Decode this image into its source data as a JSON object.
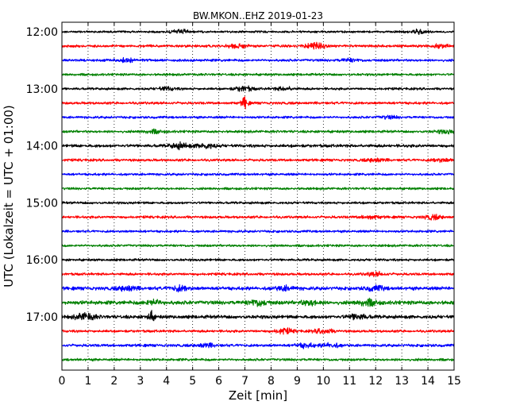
{
  "chart_data": {
    "type": "line",
    "title": "BW.MKON..EHZ 2019-01-23",
    "xlabel": "Zeit  [min]",
    "ylabel": "UTC (Lokalzeit = UTC + 01:00)",
    "xlim": [
      0,
      15
    ],
    "x_ticks": [
      "0",
      "1",
      "2",
      "3",
      "4",
      "5",
      "6",
      "7",
      "8",
      "9",
      "10",
      "11",
      "12",
      "13",
      "14",
      "15"
    ],
    "y_ticks": [
      "12:00",
      "13:00",
      "14:00",
      "15:00",
      "16:00",
      "17:00"
    ],
    "grid": "vertical dotted",
    "trace_colors": [
      "#000000",
      "#ff0000",
      "#0000ff",
      "#008000"
    ],
    "traces": [
      {
        "start": "12:00",
        "color": "#000000",
        "amplitude": 0.25,
        "events": [
          {
            "t": 4.5,
            "a": 0.45
          },
          {
            "t": 13.6,
            "a": 0.4
          }
        ]
      },
      {
        "start": "12:15",
        "color": "#ff0000",
        "amplitude": 0.3,
        "events": [
          {
            "t": 6.7,
            "a": 0.45
          },
          {
            "t": 9.7,
            "a": 0.7
          },
          {
            "t": 14.5,
            "a": 0.35
          }
        ]
      },
      {
        "start": "12:30",
        "color": "#0000ff",
        "amplitude": 0.3,
        "events": [
          {
            "t": 2.5,
            "a": 0.4
          },
          {
            "t": 11.0,
            "a": 0.3
          }
        ]
      },
      {
        "start": "12:45",
        "color": "#008000",
        "amplitude": 0.28,
        "events": []
      },
      {
        "start": "13:00",
        "color": "#000000",
        "amplitude": 0.28,
        "events": [
          {
            "t": 4.0,
            "a": 0.35
          },
          {
            "t": 6.95,
            "a": 0.55
          },
          {
            "t": 8.5,
            "a": 0.35
          }
        ]
      },
      {
        "start": "13:15",
        "color": "#ff0000",
        "amplitude": 0.3,
        "events": [
          {
            "t": 7.0,
            "a": 1.5
          }
        ]
      },
      {
        "start": "13:30",
        "color": "#0000ff",
        "amplitude": 0.28,
        "events": [
          {
            "t": 12.5,
            "a": 0.3
          }
        ]
      },
      {
        "start": "13:45",
        "color": "#008000",
        "amplitude": 0.3,
        "events": [
          {
            "t": 3.5,
            "a": 0.35
          },
          {
            "t": 14.7,
            "a": 0.35
          }
        ]
      },
      {
        "start": "14:00",
        "color": "#000000",
        "amplitude": 0.35,
        "events": [
          {
            "t": 4.5,
            "a": 0.6
          },
          {
            "t": 5.5,
            "a": 0.55
          }
        ]
      },
      {
        "start": "14:15",
        "color": "#ff0000",
        "amplitude": 0.3,
        "events": [
          {
            "t": 12.0,
            "a": 0.4
          },
          {
            "t": 14.5,
            "a": 0.35
          }
        ]
      },
      {
        "start": "14:30",
        "color": "#0000ff",
        "amplitude": 0.28,
        "events": []
      },
      {
        "start": "14:45",
        "color": "#008000",
        "amplitude": 0.28,
        "events": []
      },
      {
        "start": "15:00",
        "color": "#000000",
        "amplitude": 0.28,
        "events": []
      },
      {
        "start": "15:15",
        "color": "#ff0000",
        "amplitude": 0.3,
        "events": [
          {
            "t": 11.8,
            "a": 0.35
          },
          {
            "t": 14.2,
            "a": 0.45
          }
        ]
      },
      {
        "start": "15:30",
        "color": "#0000ff",
        "amplitude": 0.28,
        "events": []
      },
      {
        "start": "15:45",
        "color": "#008000",
        "amplitude": 0.28,
        "events": []
      },
      {
        "start": "16:00",
        "color": "#000000",
        "amplitude": 0.28,
        "events": []
      },
      {
        "start": "16:15",
        "color": "#ff0000",
        "amplitude": 0.3,
        "events": [
          {
            "t": 12.0,
            "a": 0.4
          }
        ]
      },
      {
        "start": "16:30",
        "color": "#0000ff",
        "amplitude": 0.4,
        "events": [
          {
            "t": 2.5,
            "a": 0.55
          },
          {
            "t": 4.5,
            "a": 0.55
          },
          {
            "t": 8.5,
            "a": 0.45
          },
          {
            "t": 12.0,
            "a": 0.5
          }
        ]
      },
      {
        "start": "16:45",
        "color": "#008000",
        "amplitude": 0.45,
        "events": [
          {
            "t": 3.5,
            "a": 0.55
          },
          {
            "t": 7.5,
            "a": 0.65
          },
          {
            "t": 9.5,
            "a": 0.55
          },
          {
            "t": 11.7,
            "a": 0.65
          }
        ]
      },
      {
        "start": "17:00",
        "color": "#000000",
        "amplitude": 0.4,
        "events": [
          {
            "t": 0.9,
            "a": 0.8
          },
          {
            "t": 3.4,
            "a": 1.2
          },
          {
            "t": 11.3,
            "a": 0.6
          }
        ]
      },
      {
        "start": "17:15",
        "color": "#ff0000",
        "amplitude": 0.3,
        "events": [
          {
            "t": 8.5,
            "a": 0.55
          },
          {
            "t": 10.0,
            "a": 0.5
          }
        ]
      },
      {
        "start": "17:30",
        "color": "#0000ff",
        "amplitude": 0.32,
        "events": [
          {
            "t": 5.5,
            "a": 0.4
          },
          {
            "t": 9.3,
            "a": 0.45
          },
          {
            "t": 10.3,
            "a": 0.45
          }
        ]
      },
      {
        "start": "17:45",
        "color": "#008000",
        "amplitude": 0.3,
        "events": []
      }
    ]
  }
}
